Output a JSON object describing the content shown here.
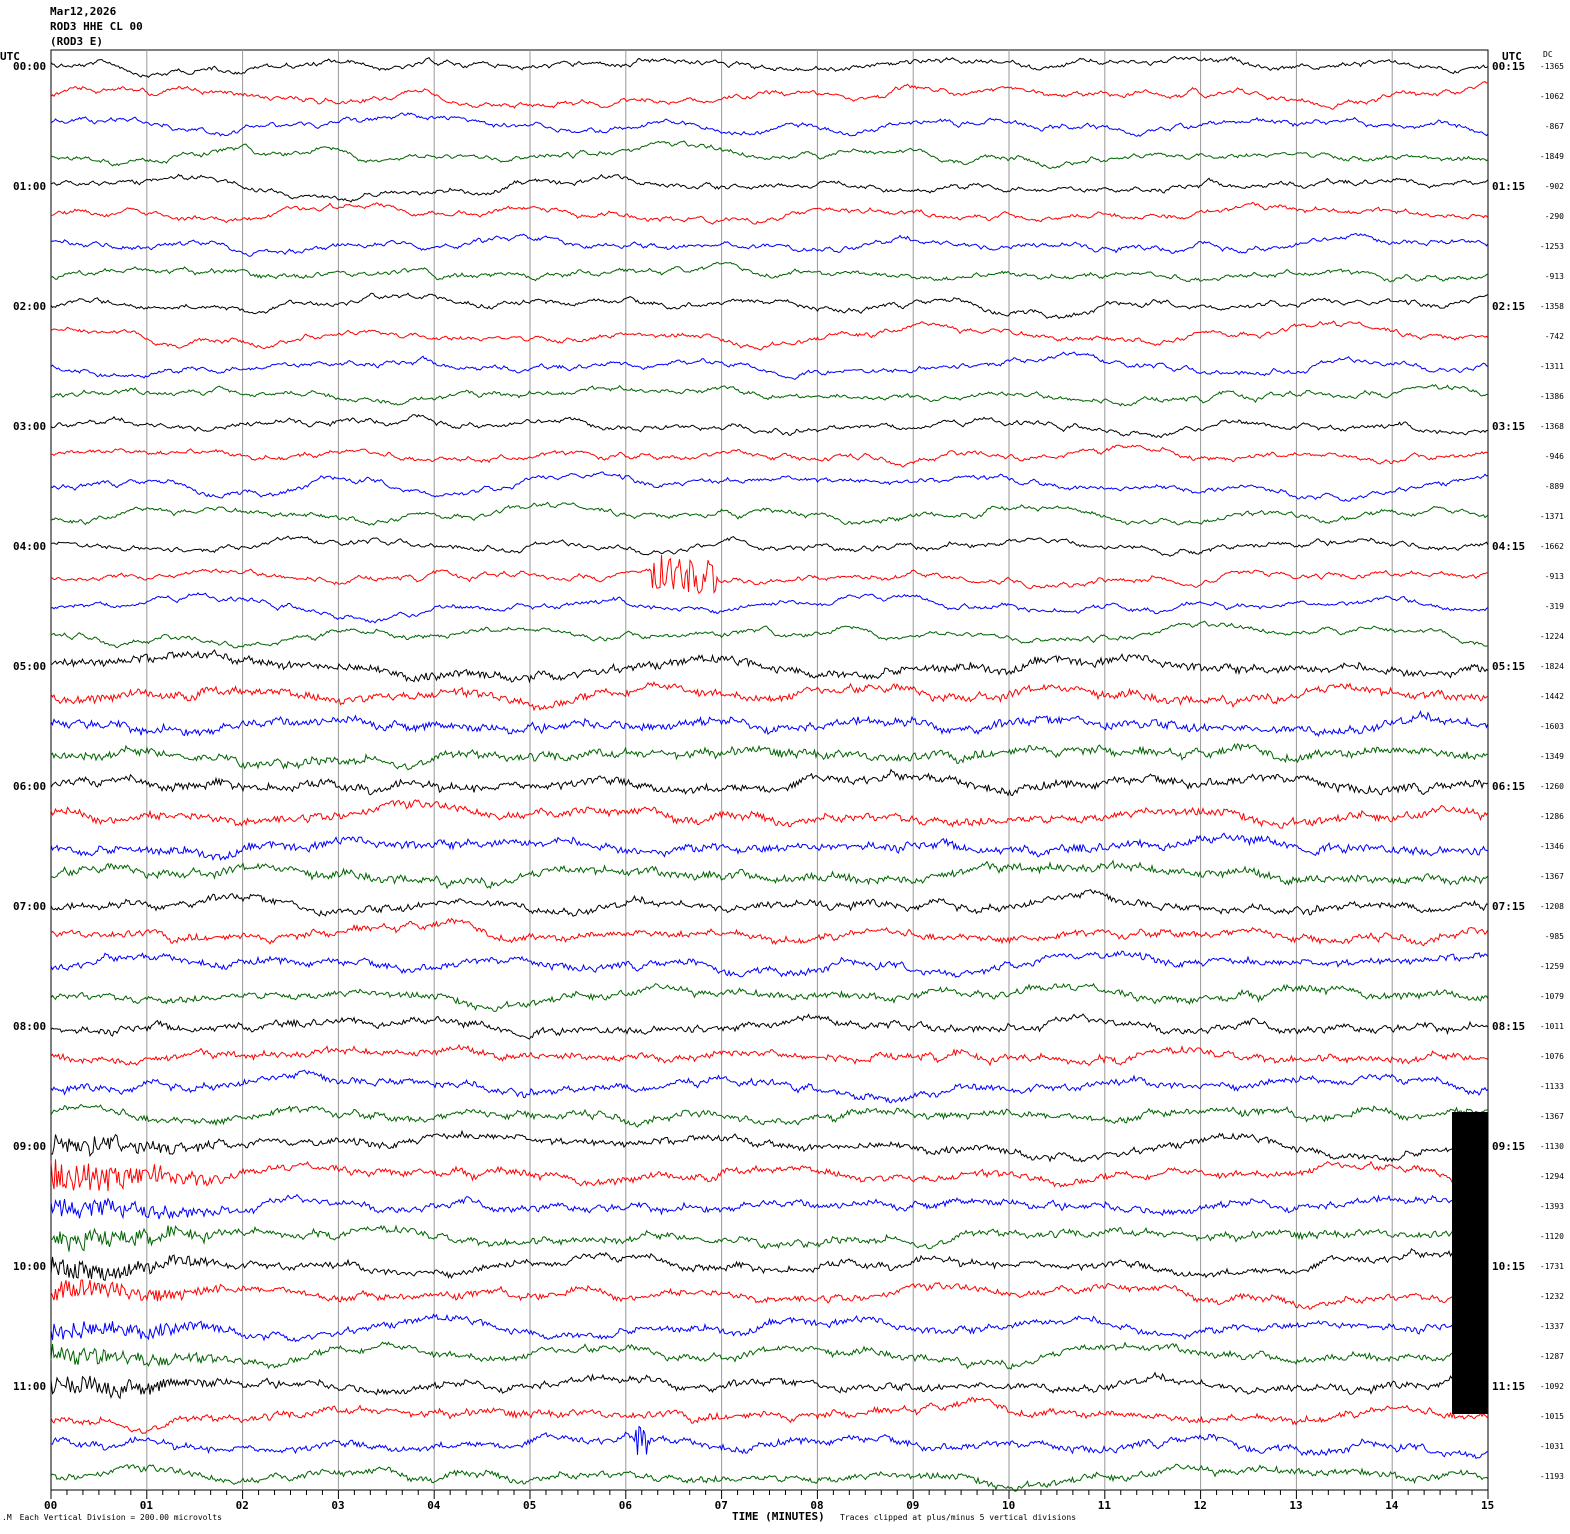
{
  "header": {
    "date": "Mar12,2026",
    "station": "ROD3 HHE CL 00",
    "channel": "(ROD3 E)"
  },
  "chart_data": {
    "type": "line",
    "title": "",
    "left_axis_label": "UTC",
    "right_axis_label": "UTC",
    "dc_label": "DC",
    "xlabel": "TIME (MINUTES)",
    "xlim": [
      0,
      15
    ],
    "x_ticks": [
      "00",
      "01",
      "02",
      "03",
      "04",
      "05",
      "06",
      "07",
      "08",
      "09",
      "10",
      "11",
      "12",
      "13",
      "14",
      "15"
    ],
    "grid": "vertical lines every minute",
    "trace_colors": [
      "#000000",
      "#ff0000",
      "#0000ff",
      "#006400"
    ],
    "left_time_labels": [
      "00:00",
      "01:00",
      "02:00",
      "03:00",
      "04:00",
      "05:00",
      "06:00",
      "07:00",
      "08:00",
      "09:00",
      "10:00",
      "11:00"
    ],
    "right_time_labels": [
      "00:15",
      "01:15",
      "02:15",
      "03:15",
      "04:15",
      "05:15",
      "06:15",
      "07:15",
      "08:15",
      "09:15",
      "10:15",
      "11:15"
    ],
    "dc_offsets": [
      "-1365",
      "-1062",
      "-867",
      "-1849",
      "-902",
      "-290",
      "-1253",
      "-913",
      "-1358",
      "-742",
      "-1311",
      "-1386",
      "-1368",
      "-946",
      "-889",
      "-1371",
      "-1662",
      "-913",
      "-319",
      "-1224",
      "-1824",
      "-1442",
      "-1603",
      "-1349",
      "-1260",
      "-1286",
      "-1346",
      "-1367",
      "-1208",
      "-985",
      "-1259",
      "-1079",
      "-1011",
      "-1076",
      "-1133",
      "-1367",
      "-1130",
      "-1294",
      "-1393",
      "-1120",
      "-1731",
      "-1232",
      "-1337",
      "-1287",
      "-1092",
      "-1015",
      "-1031",
      "-1193"
    ],
    "scale_note": "Each Vertical Division =  200.00 microvolts",
    "clip_note": "Traces clipped at plus/minus 5 vertical divisions"
  }
}
